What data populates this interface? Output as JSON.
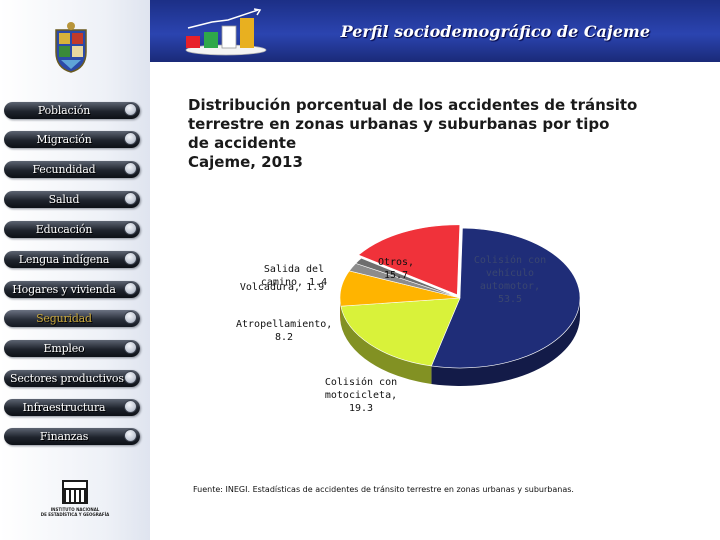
{
  "header": {
    "title": "Perfil sociodemográfico de Cajeme"
  },
  "sidebar": {
    "items": [
      {
        "label": "Población"
      },
      {
        "label": "Migración"
      },
      {
        "label": "Fecundidad"
      },
      {
        "label": "Salud"
      },
      {
        "label": "Educación"
      },
      {
        "label": "Lengua indígena"
      },
      {
        "label": "Hogares y vivienda"
      },
      {
        "label": "Seguridad"
      },
      {
        "label": "Empleo"
      },
      {
        "label": "Sectores productivos"
      },
      {
        "label": "Infraestructura"
      },
      {
        "label": "Finanzas"
      }
    ],
    "active": "Seguridad",
    "inegi_text": "INSTITUTO NACIONAL\nDE ESTADÍSTICA Y GEOGRAFÍA"
  },
  "main": {
    "title_lines": [
      "Distribución porcentual de los accidentes de tránsito",
      "terrestre en zonas urbanas y suburbanas por tipo",
      "de accidente",
      "Cajeme, 2013"
    ],
    "source": "Fuente: INEGI. Estadísticas de accidentes de tránsito terrestre en zonas urbanas y suburbanas."
  },
  "chart_data": {
    "type": "pie",
    "title": "",
    "slices": [
      {
        "label": "Colisión con vehículo automotor",
        "value": 53.5,
        "color": "#1f2d78",
        "label_text": "Colisión con\nvehículo\nautomotor,\n53.5"
      },
      {
        "label": "Colisión con motocicleta",
        "value": 19.3,
        "color": "#d9f23a",
        "label_text": "Colisión con\nmotocicleta,\n19.3"
      },
      {
        "label": "Atropellamiento",
        "value": 8.2,
        "color": "#ffb400",
        "label_text": "Atropellamiento,\n8.2"
      },
      {
        "label": "Volcadura",
        "value": 1.9,
        "color": "#8c8c8c",
        "label_text": "Volcadura, 1.9"
      },
      {
        "label": "Salida del camino",
        "value": 1.4,
        "color": "#6e6e6e",
        "label_text": "Salida del\ncamino, 1.4"
      },
      {
        "label": "Otros",
        "value": 15.7,
        "color": "#f0323a",
        "label_text": "Otros, 15.7"
      }
    ]
  }
}
